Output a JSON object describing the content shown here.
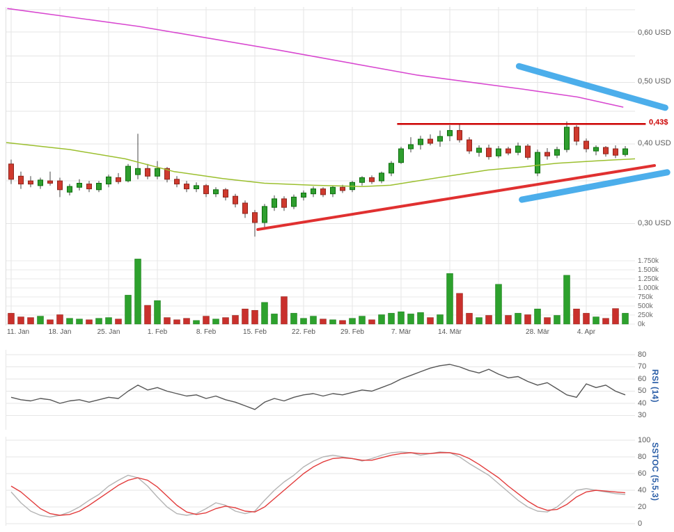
{
  "chart_data": {
    "type": "candlestick",
    "scale": "log",
    "title": "",
    "x_ticks": [
      {
        "index": 0,
        "label": "11. Jan"
      },
      {
        "index": 5,
        "label": "18. Jan"
      },
      {
        "index": 10,
        "label": "25. Jan"
      },
      {
        "index": 15,
        "label": "1. Feb"
      },
      {
        "index": 20,
        "label": "8. Feb"
      },
      {
        "index": 25,
        "label": "15. Feb"
      },
      {
        "index": 30,
        "label": "22. Feb"
      },
      {
        "index": 35,
        "label": "29. Feb"
      },
      {
        "index": 40,
        "label": "7. Mär"
      },
      {
        "index": 45,
        "label": "14. Mär"
      },
      {
        "index": 54,
        "label": "28. Mär"
      },
      {
        "index": 59,
        "label": "4. Apr"
      }
    ],
    "x_grid_extra": [
      50
    ],
    "price": {
      "axis_labels": [
        {
          "value": 0.6,
          "label": "0,60 USD"
        },
        {
          "value": 0.5,
          "label": "0,50 USD"
        },
        {
          "value": 0.4,
          "label": "0,40 USD"
        },
        {
          "value": 0.3,
          "label": "0,30 USD"
        }
      ],
      "gridline_values": [
        0.65,
        0.6,
        0.55,
        0.5,
        0.45,
        0.4,
        0.35,
        0.3
      ],
      "up_color": "#2f9e2f",
      "down_color": "#cf3a2e",
      "candles": [
        [
          0.372,
          0.378,
          0.346,
          0.352
        ],
        [
          0.356,
          0.362,
          0.34,
          0.346
        ],
        [
          0.35,
          0.356,
          0.342,
          0.346
        ],
        [
          0.344,
          0.354,
          0.34,
          0.351
        ],
        [
          0.35,
          0.362,
          0.344,
          0.347
        ],
        [
          0.35,
          0.354,
          0.33,
          0.339
        ],
        [
          0.336,
          0.346,
          0.332,
          0.343
        ],
        [
          0.342,
          0.352,
          0.338,
          0.347
        ],
        [
          0.346,
          0.35,
          0.336,
          0.34
        ],
        [
          0.339,
          0.35,
          0.336,
          0.347
        ],
        [
          0.346,
          0.358,
          0.342,
          0.355
        ],
        [
          0.354,
          0.36,
          0.346,
          0.349
        ],
        [
          0.35,
          0.372,
          0.348,
          0.369
        ],
        [
          0.358,
          0.415,
          0.352,
          0.366
        ],
        [
          0.366,
          0.372,
          0.352,
          0.356
        ],
        [
          0.356,
          0.376,
          0.352,
          0.366
        ],
        [
          0.366,
          0.368,
          0.348,
          0.352
        ],
        [
          0.352,
          0.356,
          0.342,
          0.346
        ],
        [
          0.346,
          0.35,
          0.336,
          0.34
        ],
        [
          0.34,
          0.348,
          0.336,
          0.344
        ],
        [
          0.344,
          0.346,
          0.33,
          0.334
        ],
        [
          0.334,
          0.342,
          0.33,
          0.339
        ],
        [
          0.339,
          0.341,
          0.326,
          0.33
        ],
        [
          0.331,
          0.334,
          0.318,
          0.322
        ],
        [
          0.323,
          0.326,
          0.306,
          0.311
        ],
        [
          0.312,
          0.315,
          0.286,
          0.301
        ],
        [
          0.301,
          0.322,
          0.296,
          0.319
        ],
        [
          0.318,
          0.332,
          0.314,
          0.328
        ],
        [
          0.328,
          0.331,
          0.314,
          0.318
        ],
        [
          0.319,
          0.333,
          0.316,
          0.33
        ],
        [
          0.33,
          0.338,
          0.326,
          0.335
        ],
        [
          0.334,
          0.343,
          0.33,
          0.34
        ],
        [
          0.34,
          0.342,
          0.33,
          0.333
        ],
        [
          0.334,
          0.344,
          0.33,
          0.342
        ],
        [
          0.342,
          0.345,
          0.335,
          0.338
        ],
        [
          0.339,
          0.35,
          0.336,
          0.348
        ],
        [
          0.348,
          0.356,
          0.344,
          0.354
        ],
        [
          0.354,
          0.357,
          0.346,
          0.349
        ],
        [
          0.35,
          0.362,
          0.347,
          0.36
        ],
        [
          0.36,
          0.376,
          0.356,
          0.373
        ],
        [
          0.374,
          0.396,
          0.372,
          0.393
        ],
        [
          0.393,
          0.41,
          0.388,
          0.399
        ],
        [
          0.399,
          0.412,
          0.392,
          0.407
        ],
        [
          0.407,
          0.414,
          0.398,
          0.401
        ],
        [
          0.404,
          0.42,
          0.396,
          0.411
        ],
        [
          0.412,
          0.428,
          0.404,
          0.42
        ],
        [
          0.42,
          0.431,
          0.402,
          0.406
        ],
        [
          0.406,
          0.41,
          0.386,
          0.39
        ],
        [
          0.388,
          0.398,
          0.382,
          0.394
        ],
        [
          0.394,
          0.399,
          0.378,
          0.382
        ],
        [
          0.383,
          0.397,
          0.38,
          0.393
        ],
        [
          0.393,
          0.396,
          0.384,
          0.387
        ],
        [
          0.388,
          0.402,
          0.384,
          0.397
        ],
        [
          0.397,
          0.4,
          0.378,
          0.381
        ],
        [
          0.36,
          0.392,
          0.356,
          0.388
        ],
        [
          0.388,
          0.394,
          0.378,
          0.383
        ],
        [
          0.384,
          0.396,
          0.38,
          0.392
        ],
        [
          0.392,
          0.434,
          0.388,
          0.425
        ],
        [
          0.425,
          0.428,
          0.398,
          0.404
        ],
        [
          0.404,
          0.408,
          0.388,
          0.393
        ],
        [
          0.39,
          0.398,
          0.384,
          0.395
        ],
        [
          0.395,
          0.397,
          0.382,
          0.386
        ],
        [
          0.393,
          0.398,
          0.38,
          0.384
        ],
        [
          0.385,
          0.397,
          0.382,
          0.393
        ]
      ],
      "ma_line": {
        "color": "#9bbf2e",
        "points": [
          [
            -0.5,
            0.402
          ],
          [
            6,
            0.392
          ],
          [
            11.7,
            0.379
          ],
          [
            16.7,
            0.362
          ],
          [
            21.7,
            0.353
          ],
          [
            26,
            0.347
          ],
          [
            31,
            0.3445
          ],
          [
            36,
            0.3429
          ],
          [
            38.9,
            0.3445
          ],
          [
            41.7,
            0.35
          ],
          [
            45.3,
            0.357
          ],
          [
            48.9,
            0.364
          ],
          [
            52.4,
            0.368
          ],
          [
            56,
            0.373
          ],
          [
            60.3,
            0.3765
          ],
          [
            64,
            0.379
          ]
        ]
      },
      "annotations": {
        "magenta_trend": {
          "color": "#d848d0",
          "width": 1.6,
          "points": [
            [
              -0.4,
              0.653
            ],
            [
              13.1,
              0.612
            ],
            [
              27.4,
              0.562
            ],
            [
              41.7,
              0.513
            ],
            [
              52.4,
              0.488
            ],
            [
              58.1,
              0.474
            ],
            [
              62.8,
              0.457
            ]
          ]
        },
        "resistance": {
          "color": "#cc0000",
          "width": 2.5,
          "value": 0.43,
          "label": "0,43$",
          "from_index": 39.6,
          "to_index": 65.1
        },
        "support_trend": {
          "color": "#e03030",
          "width": 4,
          "points": [
            [
              25.3,
              0.2935
            ],
            [
              66,
              0.37
            ]
          ]
        },
        "blue_channel_upper": {
          "color": "#38a5e9",
          "width": 9,
          "points": [
            [
              52.1,
              0.53
            ],
            [
              67.1,
              0.456
            ]
          ]
        },
        "blue_channel_lower": {
          "color": "#38a5e9",
          "width": 9,
          "points": [
            [
              52.4,
              0.327
            ],
            [
              67.3,
              0.361
            ]
          ]
        }
      }
    },
    "volume": {
      "axis_labels": [
        "1.750k",
        "1.500k",
        "1.250k",
        "1.000k",
        "750k",
        "500k",
        "250k",
        "0k"
      ],
      "axis_values_k": [
        1750,
        1500,
        1250,
        1000,
        750,
        500,
        250,
        0
      ],
      "up_color": "#2da12d",
      "down_color": "#c9302c",
      "values_k": [
        300,
        200,
        180,
        220,
        120,
        260,
        160,
        140,
        120,
        160,
        180,
        140,
        800,
        1800,
        520,
        650,
        180,
        120,
        160,
        100,
        220,
        140,
        180,
        240,
        420,
        380,
        600,
        280,
        760,
        300,
        160,
        220,
        140,
        120,
        100,
        160,
        220,
        120,
        260,
        300,
        340,
        280,
        320,
        180,
        260,
        1400,
        850,
        300,
        180,
        240,
        1100,
        240,
        300,
        260,
        420,
        180,
        240,
        1350,
        420,
        300,
        200,
        160,
        430,
        300
      ]
    },
    "rsi": {
      "label": "RSI (14)",
      "axis_labels": [
        "80",
        "70",
        "60",
        "50",
        "40",
        "30"
      ],
      "axis_values": [
        80,
        70,
        60,
        50,
        40,
        30
      ],
      "color": "#555555",
      "values": [
        45,
        43,
        42,
        44,
        43,
        40,
        42,
        43,
        41,
        43,
        45,
        44,
        50,
        55,
        51,
        53,
        50,
        48,
        46,
        47,
        44,
        46,
        43,
        41,
        38,
        35,
        41,
        44,
        42,
        45,
        47,
        48,
        46,
        48,
        47,
        49,
        51,
        50,
        53,
        56,
        60,
        63,
        66,
        69,
        71,
        72,
        70,
        67,
        65,
        68,
        64,
        61,
        62,
        58,
        55,
        57,
        52,
        47,
        45,
        56,
        53,
        55,
        50,
        47
      ]
    },
    "stoch": {
      "label": "SSTOC (5,5,3)",
      "axis_labels": [
        "100",
        "80",
        "60",
        "40",
        "20",
        "0"
      ],
      "axis_values": [
        100,
        80,
        60,
        40,
        20,
        0
      ],
      "k_color": "#b4b4b4",
      "d_color": "#e23b3b",
      "k_values": [
        38,
        25,
        15,
        10,
        8,
        10,
        14,
        20,
        28,
        35,
        45,
        52,
        58,
        55,
        45,
        32,
        20,
        12,
        10,
        12,
        18,
        25,
        22,
        15,
        12,
        15,
        28,
        40,
        50,
        58,
        68,
        75,
        80,
        82,
        80,
        78,
        75,
        78,
        82,
        85,
        86,
        85,
        82,
        84,
        86,
        85,
        80,
        72,
        65,
        58,
        48,
        38,
        28,
        20,
        15,
        14,
        20,
        30,
        40,
        42,
        40,
        38,
        36,
        35
      ],
      "d_values": [
        45,
        38,
        28,
        18,
        12,
        10,
        11,
        15,
        22,
        30,
        38,
        46,
        52,
        55,
        52,
        44,
        33,
        22,
        14,
        11,
        13,
        18,
        21,
        19,
        15,
        14,
        20,
        30,
        40,
        50,
        60,
        68,
        74,
        78,
        79,
        78,
        76,
        76,
        79,
        82,
        84,
        85,
        84,
        84,
        85,
        85,
        83,
        78,
        71,
        63,
        55,
        45,
        36,
        27,
        20,
        16,
        17,
        23,
        32,
        38,
        40,
        39,
        38,
        37
      ]
    }
  }
}
